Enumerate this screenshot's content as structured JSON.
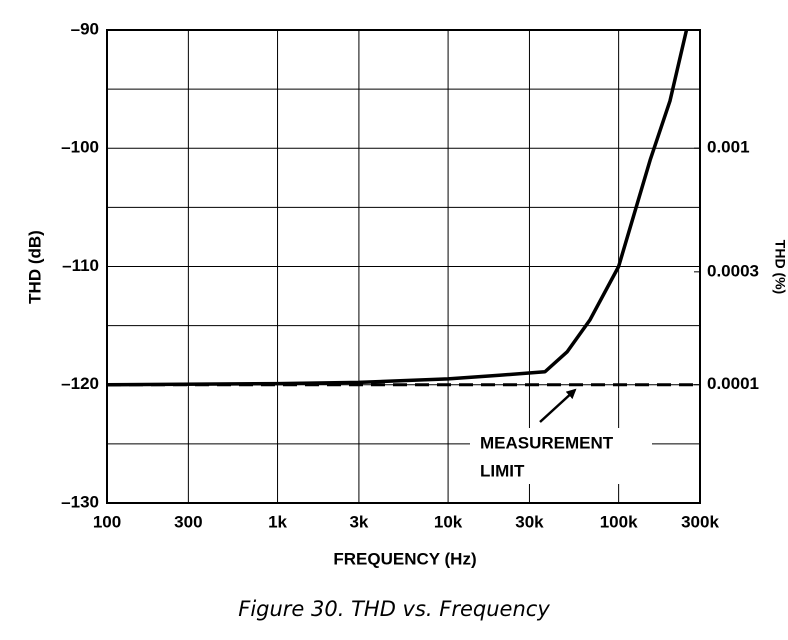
{
  "chart_data": {
    "type": "line",
    "x_label": "FREQUENCY (Hz)",
    "y_label": "THD (dB)",
    "y2_label": "THD (%)",
    "caption": "Figure 30. THD vs. Frequency",
    "annotation": [
      "MEASUREMENT",
      "LIMIT"
    ],
    "xscale": "log",
    "y2scale": "log",
    "grid": true,
    "xlim": [
      100,
      300000
    ],
    "xticks": [
      100,
      300,
      {
        "value": 1000,
        "label": "1k"
      },
      {
        "value": 3000,
        "label": "3k"
      },
      {
        "value": 10000,
        "label": "10k"
      },
      {
        "value": 30000,
        "label": "30k"
      },
      {
        "value": 100000,
        "label": "100k"
      },
      {
        "value": 300000,
        "label": "300k"
      }
    ],
    "ylim": [
      -130,
      -90
    ],
    "yticks": [
      {
        "value": -90,
        "label": "–90"
      },
      {
        "value": -100,
        "label": "–100"
      },
      {
        "value": -110,
        "label": "–110"
      },
      {
        "value": -120,
        "label": "–120"
      },
      {
        "value": -130,
        "label": "–130"
      }
    ],
    "yminor": [
      -95,
      -105,
      -115,
      -125
    ],
    "y2lim": [
      3.16e-05,
      0.00316
    ],
    "y2ticks": [
      0.001,
      0.0003,
      0.0001
    ],
    "series": [
      {
        "color": "#000000",
        "dash": false,
        "x": [
          100,
          1000,
          3000,
          10000,
          20000,
          37000,
          50000,
          68000,
          100000,
          153000,
          200000,
          250000
        ],
        "values": [
          -120,
          -119.9,
          -119.8,
          -119.5,
          -119.2,
          -118.9,
          -117.2,
          -114.5,
          -110,
          -101,
          -96,
          -90
        ]
      },
      {
        "color": "#000000",
        "dash": true,
        "x": [
          100,
          300000
        ],
        "values": [
          -120,
          -120
        ]
      }
    ]
  }
}
